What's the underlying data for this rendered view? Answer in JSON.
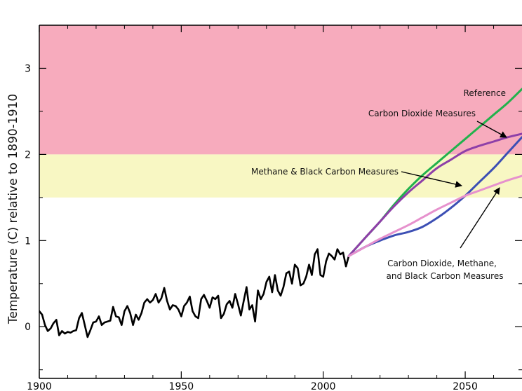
{
  "chart_data": {
    "type": "line",
    "title": "",
    "xlabel": "",
    "ylabel": "Temperature (C) relative to 1890-1910",
    "xlim": [
      1900,
      2070
    ],
    "ylim": [
      -0.6,
      3.5
    ],
    "x_ticks": [
      1900,
      1950,
      2000,
      2050
    ],
    "x_tick_labels": [
      "1900",
      "1950",
      "2000",
      "2050"
    ],
    "y_ticks": [
      0,
      1,
      2,
      3
    ],
    "y_tick_labels": [
      "0",
      "1",
      "2",
      "3"
    ],
    "grid": false,
    "bands": [
      {
        "from": 2.0,
        "to": 3.5,
        "color": "#f7abbd"
      },
      {
        "from": 1.5,
        "to": 2.0,
        "color": "#f8f7c3"
      }
    ],
    "series": [
      {
        "color": "#000000",
        "x": [
          1900,
          1901,
          1902,
          1903,
          1904,
          1905,
          1906,
          1907,
          1908,
          1909,
          1910,
          1911,
          1912,
          1913,
          1914,
          1915,
          1916,
          1917,
          1918,
          1919,
          1920,
          1921,
          1922,
          1923,
          1924,
          1925,
          1926,
          1927,
          1928,
          1929,
          1930,
          1931,
          1932,
          1933,
          1934,
          1935,
          1936,
          1937,
          1938,
          1939,
          1940,
          1941,
          1942,
          1943,
          1944,
          1945,
          1946,
          1947,
          1948,
          1949,
          1950,
          1951,
          1952,
          1953,
          1954,
          1955,
          1956,
          1957,
          1958,
          1959,
          1960,
          1961,
          1962,
          1963,
          1964,
          1965,
          1966,
          1967,
          1968,
          1969,
          1970,
          1971,
          1972,
          1973,
          1974,
          1975,
          1976,
          1977,
          1978,
          1979,
          1980,
          1981,
          1982,
          1983,
          1984,
          1985,
          1986,
          1987,
          1988,
          1989,
          1990,
          1991,
          1992,
          1993,
          1994,
          1995,
          1996,
          1997,
          1998,
          1999,
          2000,
          2001,
          2002,
          2003,
          2004,
          2005,
          2006,
          2007,
          2008,
          2009
        ],
        "values": [
          0.18,
          0.14,
          0.02,
          -0.05,
          -0.02,
          0.04,
          0.08,
          -0.1,
          -0.05,
          -0.08,
          -0.06,
          -0.07,
          -0.05,
          -0.04,
          0.1,
          0.16,
          0.02,
          -0.12,
          -0.04,
          0.05,
          0.06,
          0.12,
          0.02,
          0.05,
          0.06,
          0.07,
          0.23,
          0.12,
          0.11,
          0.02,
          0.18,
          0.24,
          0.16,
          0.02,
          0.14,
          0.08,
          0.16,
          0.28,
          0.32,
          0.28,
          0.31,
          0.38,
          0.28,
          0.33,
          0.45,
          0.3,
          0.2,
          0.25,
          0.24,
          0.2,
          0.12,
          0.24,
          0.28,
          0.35,
          0.18,
          0.12,
          0.1,
          0.32,
          0.37,
          0.3,
          0.22,
          0.34,
          0.32,
          0.36,
          0.1,
          0.15,
          0.26,
          0.3,
          0.22,
          0.38,
          0.26,
          0.13,
          0.3,
          0.46,
          0.2,
          0.25,
          0.06,
          0.42,
          0.32,
          0.38,
          0.52,
          0.58,
          0.4,
          0.6,
          0.42,
          0.36,
          0.46,
          0.62,
          0.64,
          0.5,
          0.72,
          0.68,
          0.48,
          0.5,
          0.58,
          0.72,
          0.6,
          0.84,
          0.9,
          0.6,
          0.58,
          0.76,
          0.85,
          0.82,
          0.78,
          0.9,
          0.84,
          0.86,
          0.7,
          0.82
        ]
      },
      {
        "color": "#22b24c",
        "x": [
          2009,
          2015,
          2020,
          2025,
          2030,
          2035,
          2040,
          2045,
          2050,
          2055,
          2060,
          2065,
          2070
        ],
        "values": [
          0.82,
          1.04,
          1.22,
          1.42,
          1.6,
          1.76,
          1.9,
          2.04,
          2.18,
          2.32,
          2.46,
          2.6,
          2.76
        ]
      },
      {
        "color": "#8e3fa8",
        "x": [
          2009,
          2015,
          2020,
          2025,
          2030,
          2035,
          2040,
          2045,
          2050,
          2055,
          2060,
          2065,
          2070
        ],
        "values": [
          0.82,
          1.04,
          1.22,
          1.4,
          1.56,
          1.7,
          1.84,
          1.94,
          2.04,
          2.1,
          2.15,
          2.2,
          2.24
        ]
      },
      {
        "color": "#3c4fb4",
        "x": [
          2009,
          2015,
          2020,
          2025,
          2030,
          2035,
          2040,
          2045,
          2050,
          2055,
          2060,
          2065,
          2070
        ],
        "values": [
          0.82,
          0.93,
          1.0,
          1.06,
          1.1,
          1.16,
          1.26,
          1.38,
          1.52,
          1.68,
          1.84,
          2.02,
          2.2
        ]
      },
      {
        "color": "#e691cd",
        "x": [
          2009,
          2015,
          2020,
          2025,
          2030,
          2035,
          2040,
          2045,
          2050,
          2055,
          2060,
          2065,
          2070
        ],
        "values": [
          0.82,
          0.93,
          1.02,
          1.1,
          1.18,
          1.27,
          1.36,
          1.44,
          1.52,
          1.58,
          1.64,
          1.7,
          1.75
        ]
      }
    ],
    "annotations": [
      {
        "text": "Reference"
      },
      {
        "text": "Carbon Dioxide Measures"
      },
      {
        "text": "Methane & Black Carbon Measures"
      },
      {
        "text": "Carbon Dioxide, Methane,"
      },
      {
        "text": "and Black Carbon Measures"
      }
    ]
  }
}
